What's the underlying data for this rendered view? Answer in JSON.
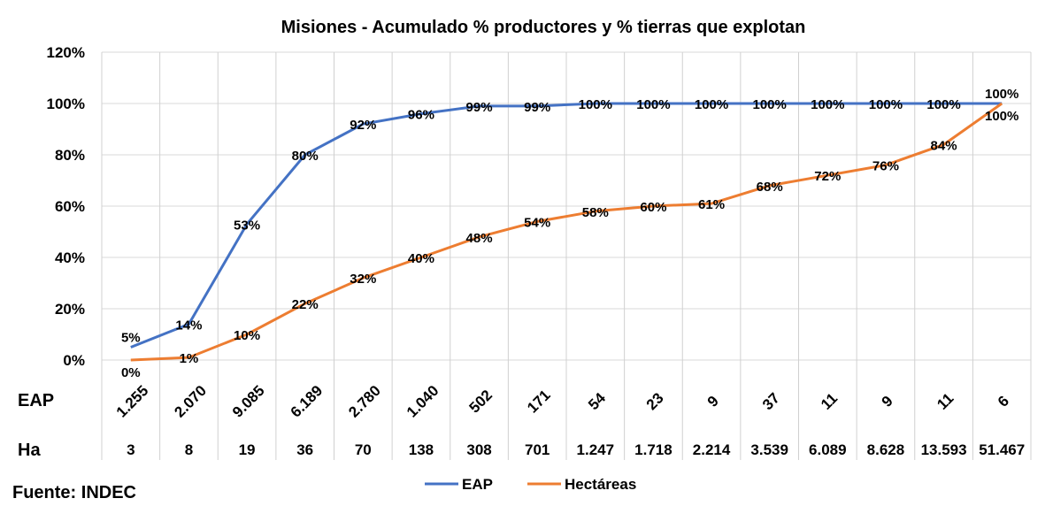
{
  "chart_data": {
    "type": "line",
    "title": "Misiones - Acumulado  % productores y % tierras que explotan",
    "source": "Fuente: INDEC",
    "ylim": [
      0,
      120
    ],
    "yticks": [
      "0%",
      "20%",
      "40%",
      "60%",
      "80%",
      "100%",
      "120%"
    ],
    "ytick_values": [
      0,
      20,
      40,
      60,
      80,
      100,
      120
    ],
    "grid": true,
    "legend_position": "bottom",
    "table_rows": [
      {
        "label": "EAP",
        "values": [
          "1.255",
          "2.070",
          "9.085",
          "6.189",
          "2.780",
          "1.040",
          "502",
          "171",
          "54",
          "23",
          "9",
          "37",
          "11",
          "9",
          "11",
          "6"
        ]
      },
      {
        "label": "Ha",
        "values": [
          "3",
          "8",
          "19",
          "36",
          "70",
          "138",
          "308",
          "701",
          "1.247",
          "1.718",
          "2.214",
          "3.539",
          "6.089",
          "8.628",
          "13.593",
          "51.467"
        ]
      }
    ],
    "series": [
      {
        "name": "EAP",
        "color": "#4472C4",
        "values": [
          5,
          14,
          53,
          80,
          92,
          96,
          99,
          99,
          100,
          100,
          100,
          100,
          100,
          100,
          100,
          100
        ]
      },
      {
        "name": "Hectáreas",
        "color": "#ED7D31",
        "values": [
          0,
          1,
          10,
          22,
          32,
          40,
          48,
          54,
          58,
          60,
          61,
          68,
          72,
          76,
          84,
          100
        ]
      }
    ]
  }
}
